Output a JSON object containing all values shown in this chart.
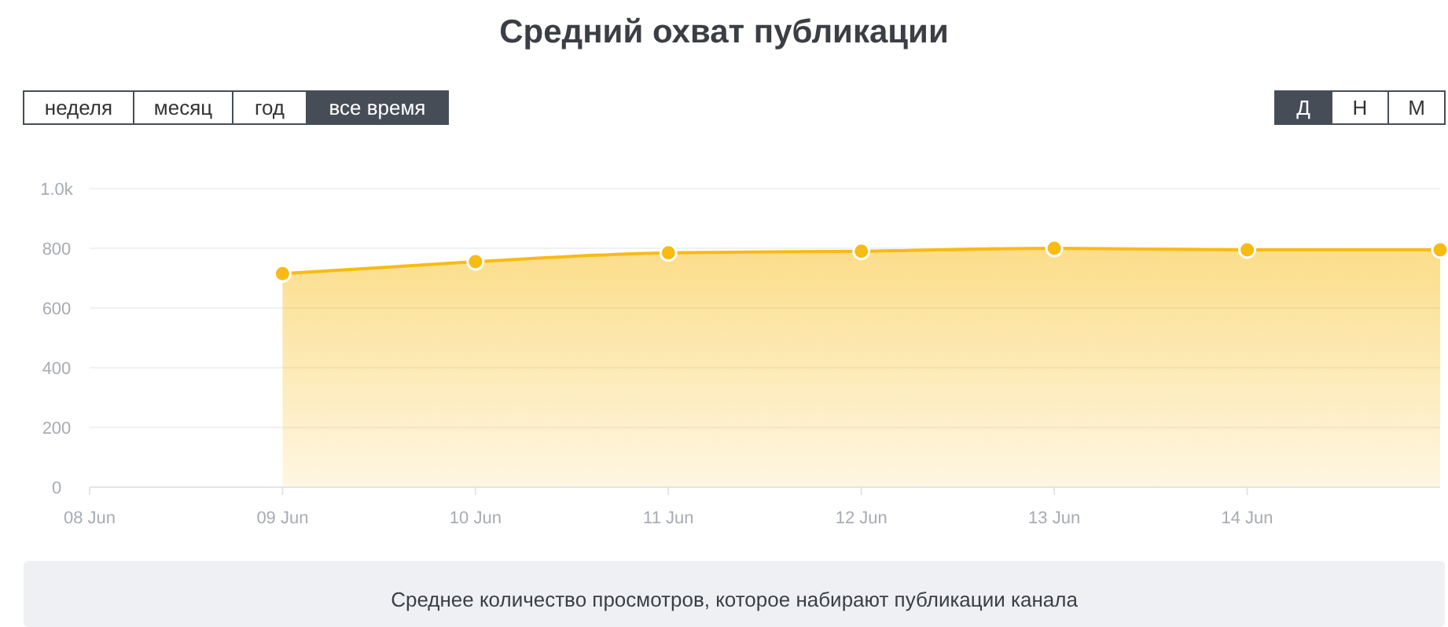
{
  "chart_data": {
    "type": "area",
    "title": "Средний охват публикации",
    "x": [
      "--06-09",
      "--06-10",
      "--06-11",
      "--06-12",
      "--06-13",
      "--06-14",
      "--06-15"
    ],
    "series": [
      {
        "color": "#f8bb14",
        "values": [
          715,
          755,
          785,
          790,
          800,
          795,
          795
        ]
      }
    ],
    "xlim": [
      "--06-08",
      "--06-15"
    ],
    "xticks": [
      {
        "value": "--06-08",
        "label": "08 Jun"
      },
      {
        "value": "--06-09",
        "label": "09 Jun"
      },
      {
        "value": "--06-10",
        "label": "10 Jun"
      },
      {
        "value": "--06-11",
        "label": "11 Jun"
      },
      {
        "value": "--06-12",
        "label": "12 Jun"
      },
      {
        "value": "--06-13",
        "label": "13 Jun"
      },
      {
        "value": "--06-14",
        "label": "14 Jun"
      }
    ],
    "ylim": [
      0,
      1000
    ],
    "yticks": [
      0,
      200,
      400,
      600,
      800,
      {
        "value": 1000,
        "label": "1.0k"
      }
    ],
    "grid": "y",
    "marker": "circle",
    "annotations": [
      "неделя",
      "месяц",
      "год",
      "все время",
      "Д",
      "Н",
      "М",
      "Среднее количество просмотров, которое набирают публикации канала"
    ]
  }
}
